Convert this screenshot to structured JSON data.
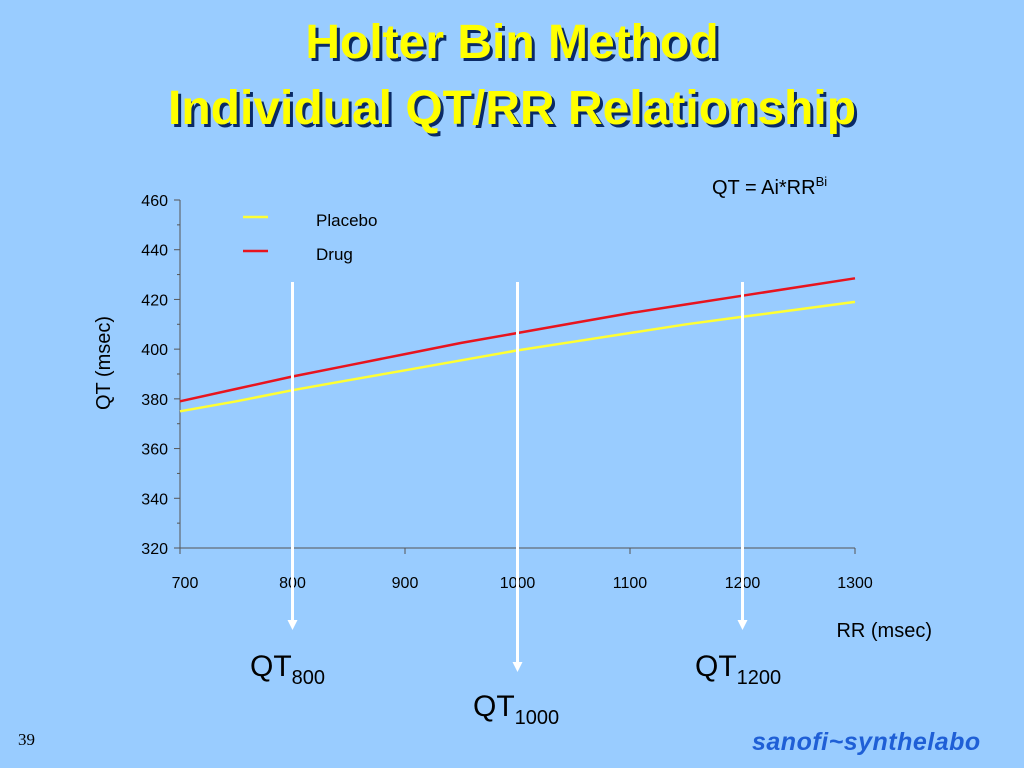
{
  "slide": {
    "title_line1": "Holter Bin Method",
    "title_line2": "Individual QT/RR Relationship",
    "number": "39",
    "logo": "sanofi~synthelabo"
  },
  "formula": {
    "base": "QT = Ai*RR",
    "sup": "Bi"
  },
  "markers": [
    {
      "rr": 800,
      "base": "QT",
      "sub": "800"
    },
    {
      "rr": 1000,
      "base": "QT",
      "sub": "1000"
    },
    {
      "rr": 1200,
      "base": "QT",
      "sub": "1200"
    }
  ],
  "colors": {
    "background": "#99ccff",
    "title": "#ffff00",
    "placebo": "#ffff33",
    "drug": "#e8141e",
    "arrow": "#ffffff",
    "logo": "#1f5fd6"
  },
  "chart_data": {
    "type": "line",
    "xlabel": "RR (msec)",
    "ylabel": "QT (msec)",
    "xlim": [
      700,
      1300
    ],
    "ylim": [
      320,
      460
    ],
    "xticks": [
      700,
      800,
      900,
      1000,
      1100,
      1200,
      1300
    ],
    "yticks": [
      320,
      340,
      360,
      380,
      400,
      420,
      440,
      460
    ],
    "legend_position": "top-left",
    "grid": false,
    "series": [
      {
        "name": "Placebo",
        "color": "#ffff33",
        "x": [
          700,
          750,
          800,
          850,
          900,
          950,
          1000,
          1050,
          1100,
          1150,
          1200,
          1250,
          1300
        ],
        "y": [
          375,
          379,
          383.5,
          387.5,
          391.5,
          395.5,
          399.5,
          403,
          406.5,
          410,
          413,
          416,
          419
        ]
      },
      {
        "name": "Drug",
        "color": "#e8141e",
        "x": [
          700,
          750,
          800,
          850,
          900,
          950,
          1000,
          1050,
          1100,
          1150,
          1200,
          1250,
          1300
        ],
        "y": [
          379,
          384,
          389,
          393.5,
          398,
          402.5,
          406.5,
          410.5,
          414.5,
          418,
          421.5,
          425,
          428.5
        ]
      }
    ]
  }
}
